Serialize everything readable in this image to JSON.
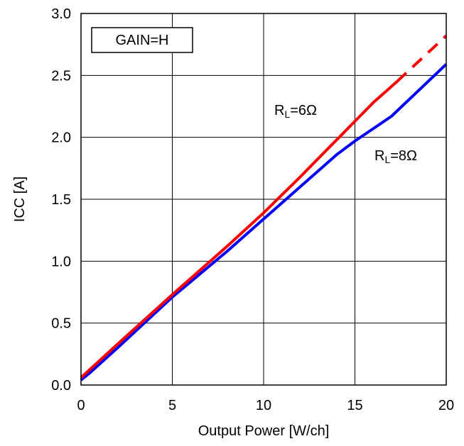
{
  "chart_data": {
    "type": "line",
    "annotation_box": "GAIN=H",
    "xlabel": "Output Power [W/ch]",
    "ylabel": "ICC [A]",
    "xlim": [
      0,
      20
    ],
    "ylim": [
      0.0,
      3.0
    ],
    "x_ticks": [
      "0",
      "5",
      "10",
      "15",
      "20"
    ],
    "y_ticks": [
      "0.0",
      "0.5",
      "1.0",
      "1.5",
      "2.0",
      "2.5",
      "3.0"
    ],
    "grid": true,
    "series": [
      {
        "name_main": "R",
        "name_sub": "L",
        "name_suffix": "=6Ω",
        "color": "#ff0000",
        "points": [
          [
            0,
            0.06
          ],
          [
            2,
            0.33
          ],
          [
            5,
            0.73
          ],
          [
            8,
            1.12
          ],
          [
            10,
            1.39
          ],
          [
            12,
            1.68
          ],
          [
            14,
            1.98
          ],
          [
            16,
            2.28
          ],
          [
            17.3,
            2.45
          ]
        ],
        "dashed_points": [
          [
            17.3,
            2.45
          ],
          [
            20,
            2.82
          ]
        ]
      },
      {
        "name_main": "R",
        "name_sub": "L",
        "name_suffix": "=8Ω",
        "color": "#0000ff",
        "points": [
          [
            0,
            0.04
          ],
          [
            0.5,
            0.1
          ],
          [
            2,
            0.3
          ],
          [
            5,
            0.71
          ],
          [
            8,
            1.08
          ],
          [
            10,
            1.34
          ],
          [
            12,
            1.6
          ],
          [
            14,
            1.86
          ],
          [
            15,
            1.97
          ],
          [
            17,
            2.17
          ],
          [
            20,
            2.59
          ]
        ]
      }
    ]
  }
}
